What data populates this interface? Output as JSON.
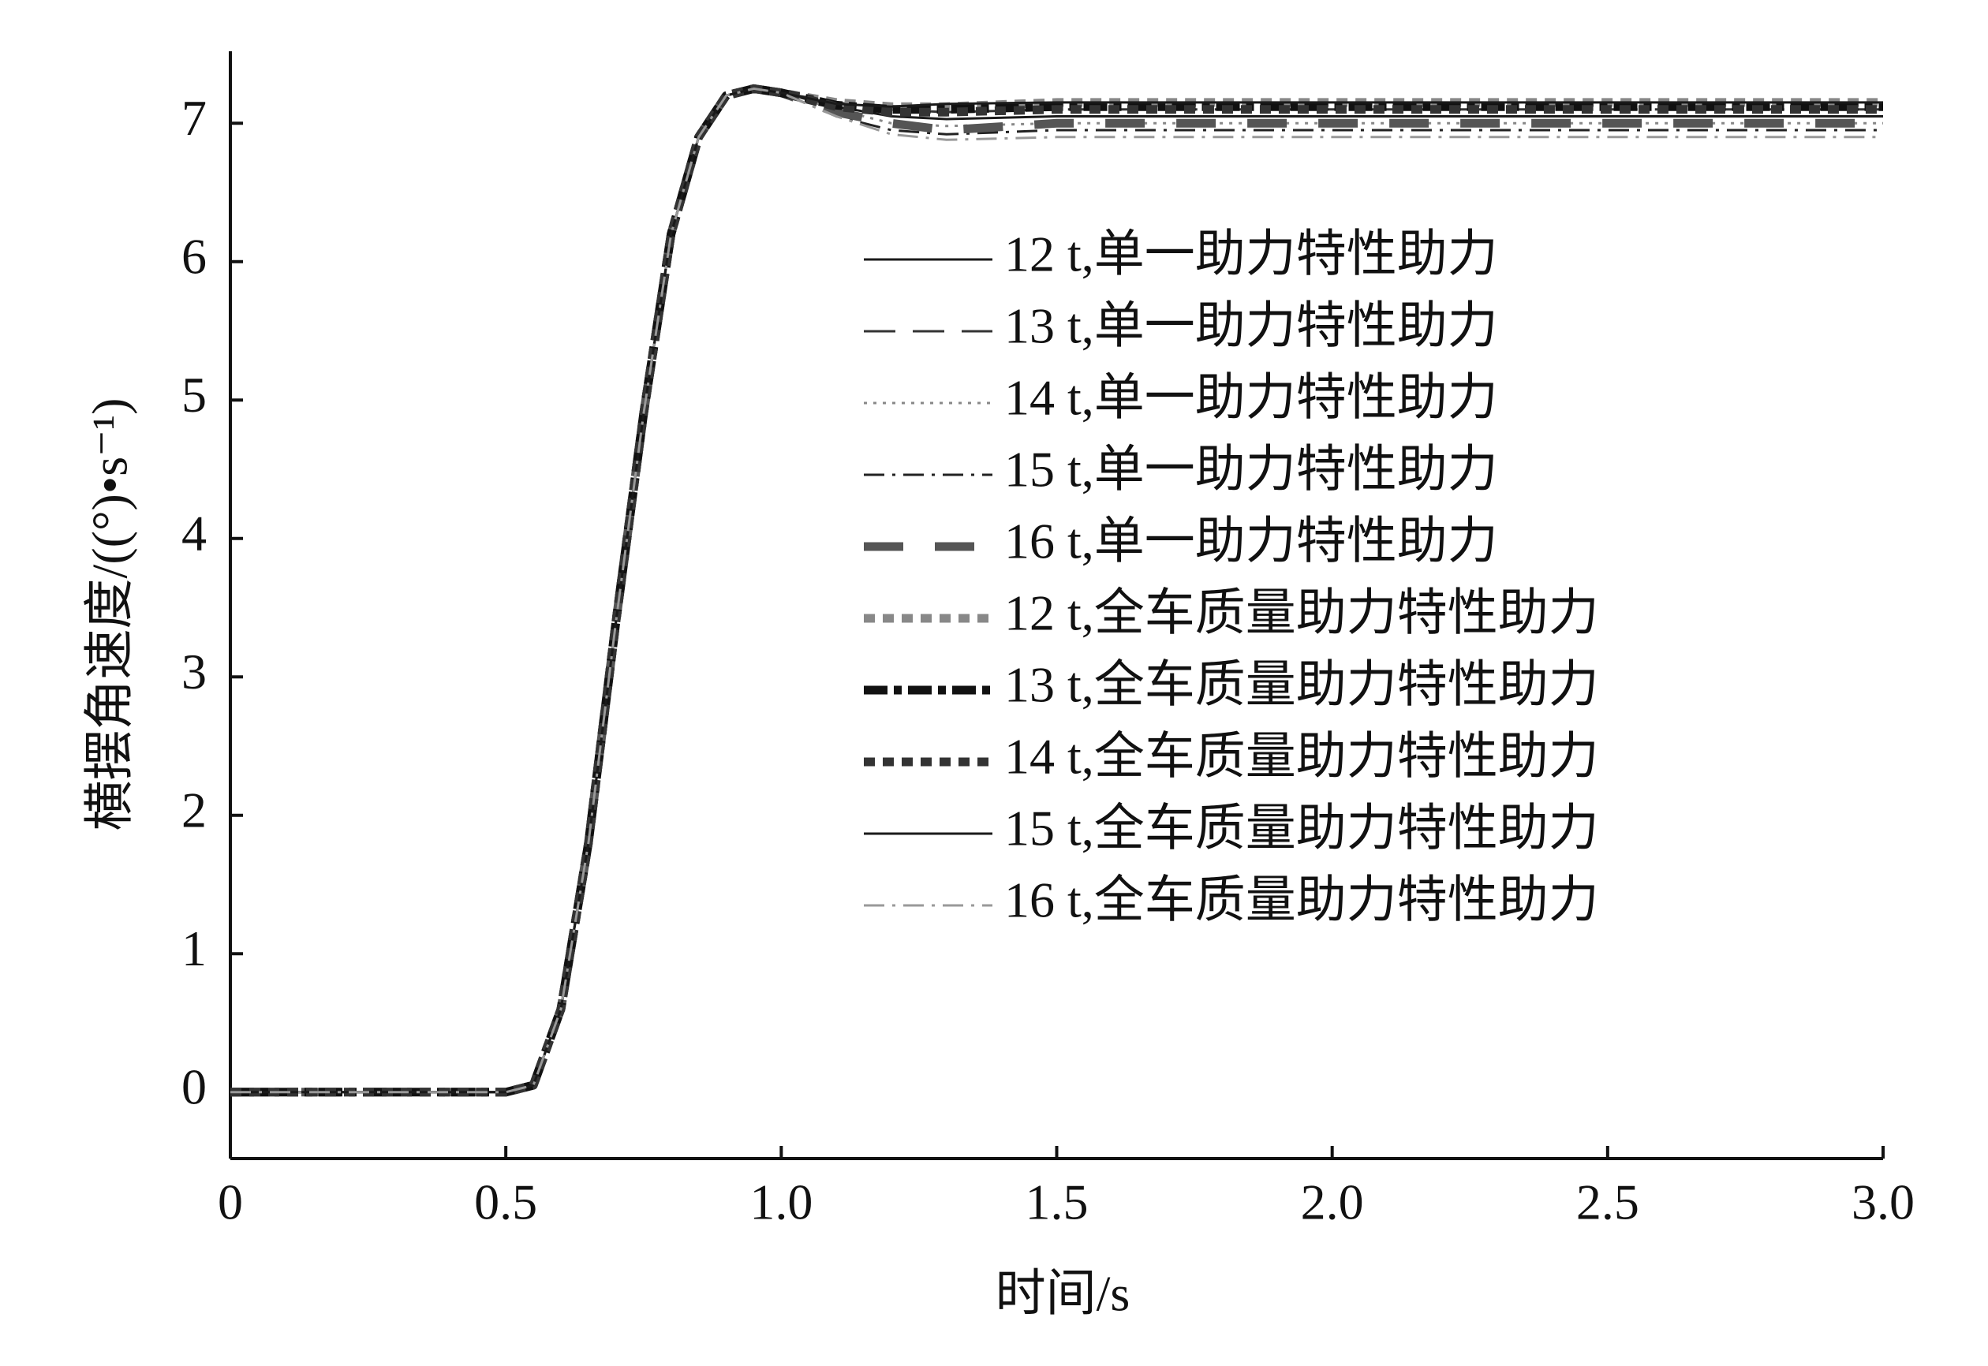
{
  "chart_data": {
    "type": "line",
    "xlabel": "时间/s",
    "ylabel": "横摆角速度/((°)•s⁻¹)",
    "xlim": [
      0,
      3
    ],
    "ylim": [
      -0.48,
      7.52
    ],
    "xticks": [
      0,
      0.5,
      {
        "value": 1,
        "label": "1.0"
      },
      1.5,
      {
        "value": 2,
        "label": "2.0"
      },
      2.5,
      {
        "value": 3,
        "label": "3.0"
      }
    ],
    "yticks": [
      0,
      1,
      2,
      3,
      4,
      5,
      6,
      7
    ],
    "grid": false,
    "legend": "upper right",
    "x": [
      0,
      0.5,
      0.55,
      0.6,
      0.65,
      0.7,
      0.75,
      0.8,
      0.85,
      0.9,
      0.95,
      1.0,
      1.1,
      1.2,
      1.3,
      1.5,
      2.0,
      2.5,
      3.0
    ],
    "series": [
      {
        "name": "12 t,单一助力特性助力",
        "color": "#1a1a1a",
        "style": "solid",
        "values": [
          0,
          0,
          0.05,
          0.6,
          1.8,
          3.4,
          4.9,
          6.2,
          6.9,
          7.2,
          7.25,
          7.22,
          7.12,
          7.05,
          7.03,
          7.05,
          7.05,
          7.05,
          7.05
        ]
      },
      {
        "name": "13 t,单一助力特性助力",
        "color": "#333333",
        "style": "long-dash",
        "values": [
          0,
          0,
          0.05,
          0.6,
          1.8,
          3.4,
          4.9,
          6.2,
          6.9,
          7.2,
          7.25,
          7.22,
          7.15,
          7.1,
          7.08,
          7.1,
          7.1,
          7.1,
          7.1
        ]
      },
      {
        "name": "14 t,单一助力特性助力",
        "color": "#888888",
        "style": "dotted",
        "values": [
          0,
          0,
          0.05,
          0.6,
          1.8,
          3.4,
          4.9,
          6.2,
          6.9,
          7.2,
          7.25,
          7.22,
          7.1,
          7.0,
          6.98,
          7.0,
          7.0,
          7.0,
          7.0
        ]
      },
      {
        "name": "15 t,单一助力特性助力",
        "color": "#222222",
        "style": "dash-dot",
        "values": [
          0,
          0,
          0.05,
          0.6,
          1.8,
          3.4,
          4.9,
          6.2,
          6.9,
          7.2,
          7.25,
          7.22,
          7.05,
          6.95,
          6.92,
          6.95,
          6.95,
          6.95,
          6.95
        ]
      },
      {
        "name": "16 t,单一助力特性助力",
        "color": "#555555",
        "style": "thick-long-dash",
        "values": [
          0,
          0,
          0.05,
          0.6,
          1.8,
          3.4,
          4.9,
          6.2,
          6.9,
          7.2,
          7.25,
          7.22,
          7.08,
          7.0,
          6.95,
          7.0,
          7.0,
          7.0,
          7.0
        ]
      },
      {
        "name": "12 t,全车质量助力特性助力",
        "color": "#888888",
        "style": "thick-dotted",
        "values": [
          0,
          0,
          0.05,
          0.6,
          1.8,
          3.4,
          4.9,
          6.2,
          6.9,
          7.2,
          7.25,
          7.22,
          7.15,
          7.12,
          7.12,
          7.15,
          7.15,
          7.15,
          7.15
        ]
      },
      {
        "name": "13 t,全车质量助力特性助力",
        "color": "#111111",
        "style": "thick-dash-dot",
        "values": [
          0,
          0,
          0.05,
          0.6,
          1.8,
          3.4,
          4.9,
          6.2,
          6.9,
          7.2,
          7.25,
          7.22,
          7.13,
          7.1,
          7.1,
          7.12,
          7.12,
          7.12,
          7.12
        ]
      },
      {
        "name": "14 t,全车质量助力特性助力",
        "color": "#333333",
        "style": "thick-dotted",
        "values": [
          0,
          0,
          0.05,
          0.6,
          1.8,
          3.4,
          4.9,
          6.2,
          6.9,
          7.2,
          7.25,
          7.22,
          7.12,
          7.08,
          7.08,
          7.1,
          7.1,
          7.1,
          7.1
        ]
      },
      {
        "name": "15 t,全车质量助力特性助力",
        "color": "#1a1a1a",
        "style": "solid",
        "values": [
          0,
          0,
          0.05,
          0.6,
          1.8,
          3.4,
          4.9,
          6.2,
          6.9,
          7.2,
          7.25,
          7.22,
          7.14,
          7.12,
          7.14,
          7.15,
          7.15,
          7.15,
          7.15
        ]
      },
      {
        "name": "16 t,全车质量助力特性助力",
        "color": "#999999",
        "style": "dash-dot",
        "values": [
          0,
          0,
          0.05,
          0.6,
          1.8,
          3.4,
          4.9,
          6.2,
          6.9,
          7.2,
          7.25,
          7.22,
          7.05,
          6.92,
          6.88,
          6.9,
          6.9,
          6.9,
          6.9
        ]
      }
    ]
  }
}
